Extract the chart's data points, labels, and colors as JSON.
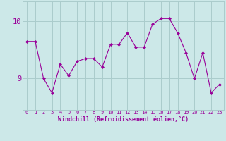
{
  "x": [
    0,
    1,
    2,
    3,
    4,
    5,
    6,
    7,
    8,
    9,
    10,
    11,
    12,
    13,
    14,
    15,
    16,
    17,
    18,
    19,
    20,
    21,
    22,
    23
  ],
  "y": [
    9.65,
    9.65,
    9.0,
    8.75,
    9.25,
    9.05,
    9.3,
    9.35,
    9.35,
    9.2,
    9.6,
    9.6,
    9.8,
    9.55,
    9.55,
    9.95,
    10.05,
    10.05,
    9.8,
    9.45,
    9.0,
    9.45,
    8.75,
    8.9
  ],
  "line_color": "#990099",
  "marker": "D",
  "marker_size": 2.0,
  "bg_color": "#cce8e8",
  "grid_color": "#aacccc",
  "xlabel": "Windchill (Refroidissement éolien,°C)",
  "ylabel": "",
  "yticks": [
    9,
    10
  ],
  "ylim": [
    8.45,
    10.35
  ],
  "xlim": [
    -0.5,
    23.5
  ],
  "title": "",
  "font_color": "#990099",
  "font_family": "monospace",
  "xlabel_fontsize": 6.0,
  "xtick_fontsize": 5.0,
  "ytick_fontsize": 7.5
}
